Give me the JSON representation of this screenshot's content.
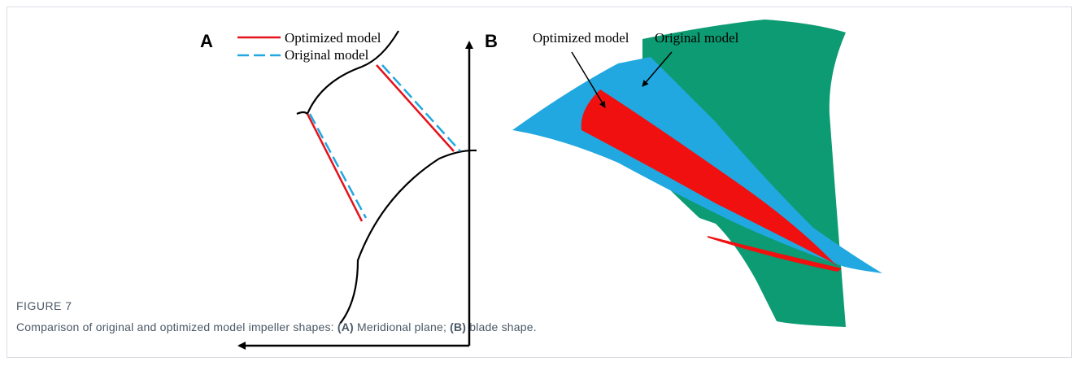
{
  "panel_a": {
    "label": "A",
    "legend": [
      "Optimized model",
      "Original model"
    ]
  },
  "panel_b": {
    "label": "B",
    "annotations": [
      "Optimized model",
      "Original model"
    ]
  },
  "caption": {
    "figure_label": "FIGURE 7",
    "parts": [
      "Comparison of original and optimized model impeller shapes: ",
      "(A)",
      " Meridional plane; ",
      "(B)",
      " blade shape."
    ]
  }
}
